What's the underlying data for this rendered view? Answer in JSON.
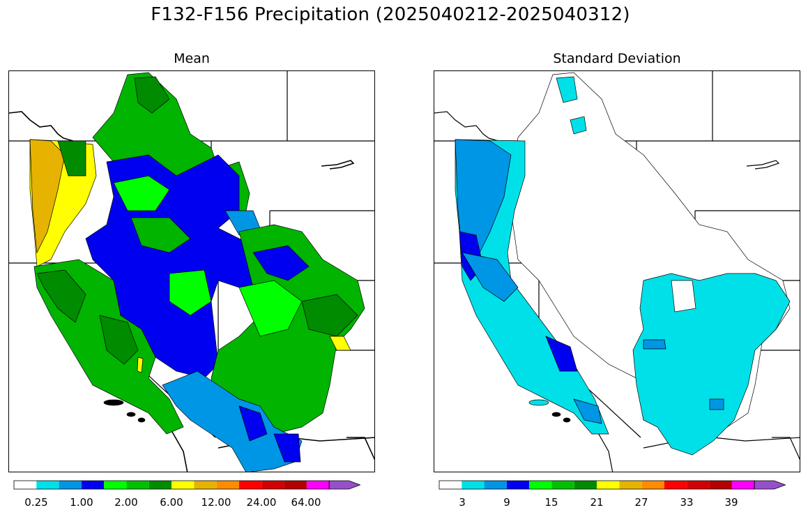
{
  "title": "F132-F156 Precipitation (2025040212-2025040312)",
  "panels": [
    {
      "title": "Mean",
      "colorbar": {
        "ticks": [
          "0.25",
          "1.00",
          "2.00",
          "6.00",
          "12.00",
          "24.00",
          "64.00"
        ]
      }
    },
    {
      "title": "Standard Deviation",
      "colorbar": {
        "ticks": [
          "3",
          "9",
          "15",
          "21",
          "27",
          "33",
          "39"
        ]
      }
    }
  ],
  "colorbar_colors": [
    "#ffffff",
    "#00e0e8",
    "#0096e6",
    "#0000f0",
    "#00ff00",
    "#00c000",
    "#008c00",
    "#ffff00",
    "#e6b400",
    "#ff8c00",
    "#ff0000",
    "#d20000",
    "#b40000",
    "#ff00ff",
    "#9650c8"
  ],
  "fill_colors": {
    "mean_green_dark": "#008c00",
    "mean_green": "#00b400",
    "mean_green_light": "#00ff00",
    "mean_blue": "#0000f0",
    "mean_sky": "#0096e6",
    "mean_yellow": "#ffff00",
    "mean_gold": "#e6b400",
    "sd_cyan": "#00e0e8",
    "sd_sky": "#0096e6",
    "sd_blue": "#0000f0"
  }
}
